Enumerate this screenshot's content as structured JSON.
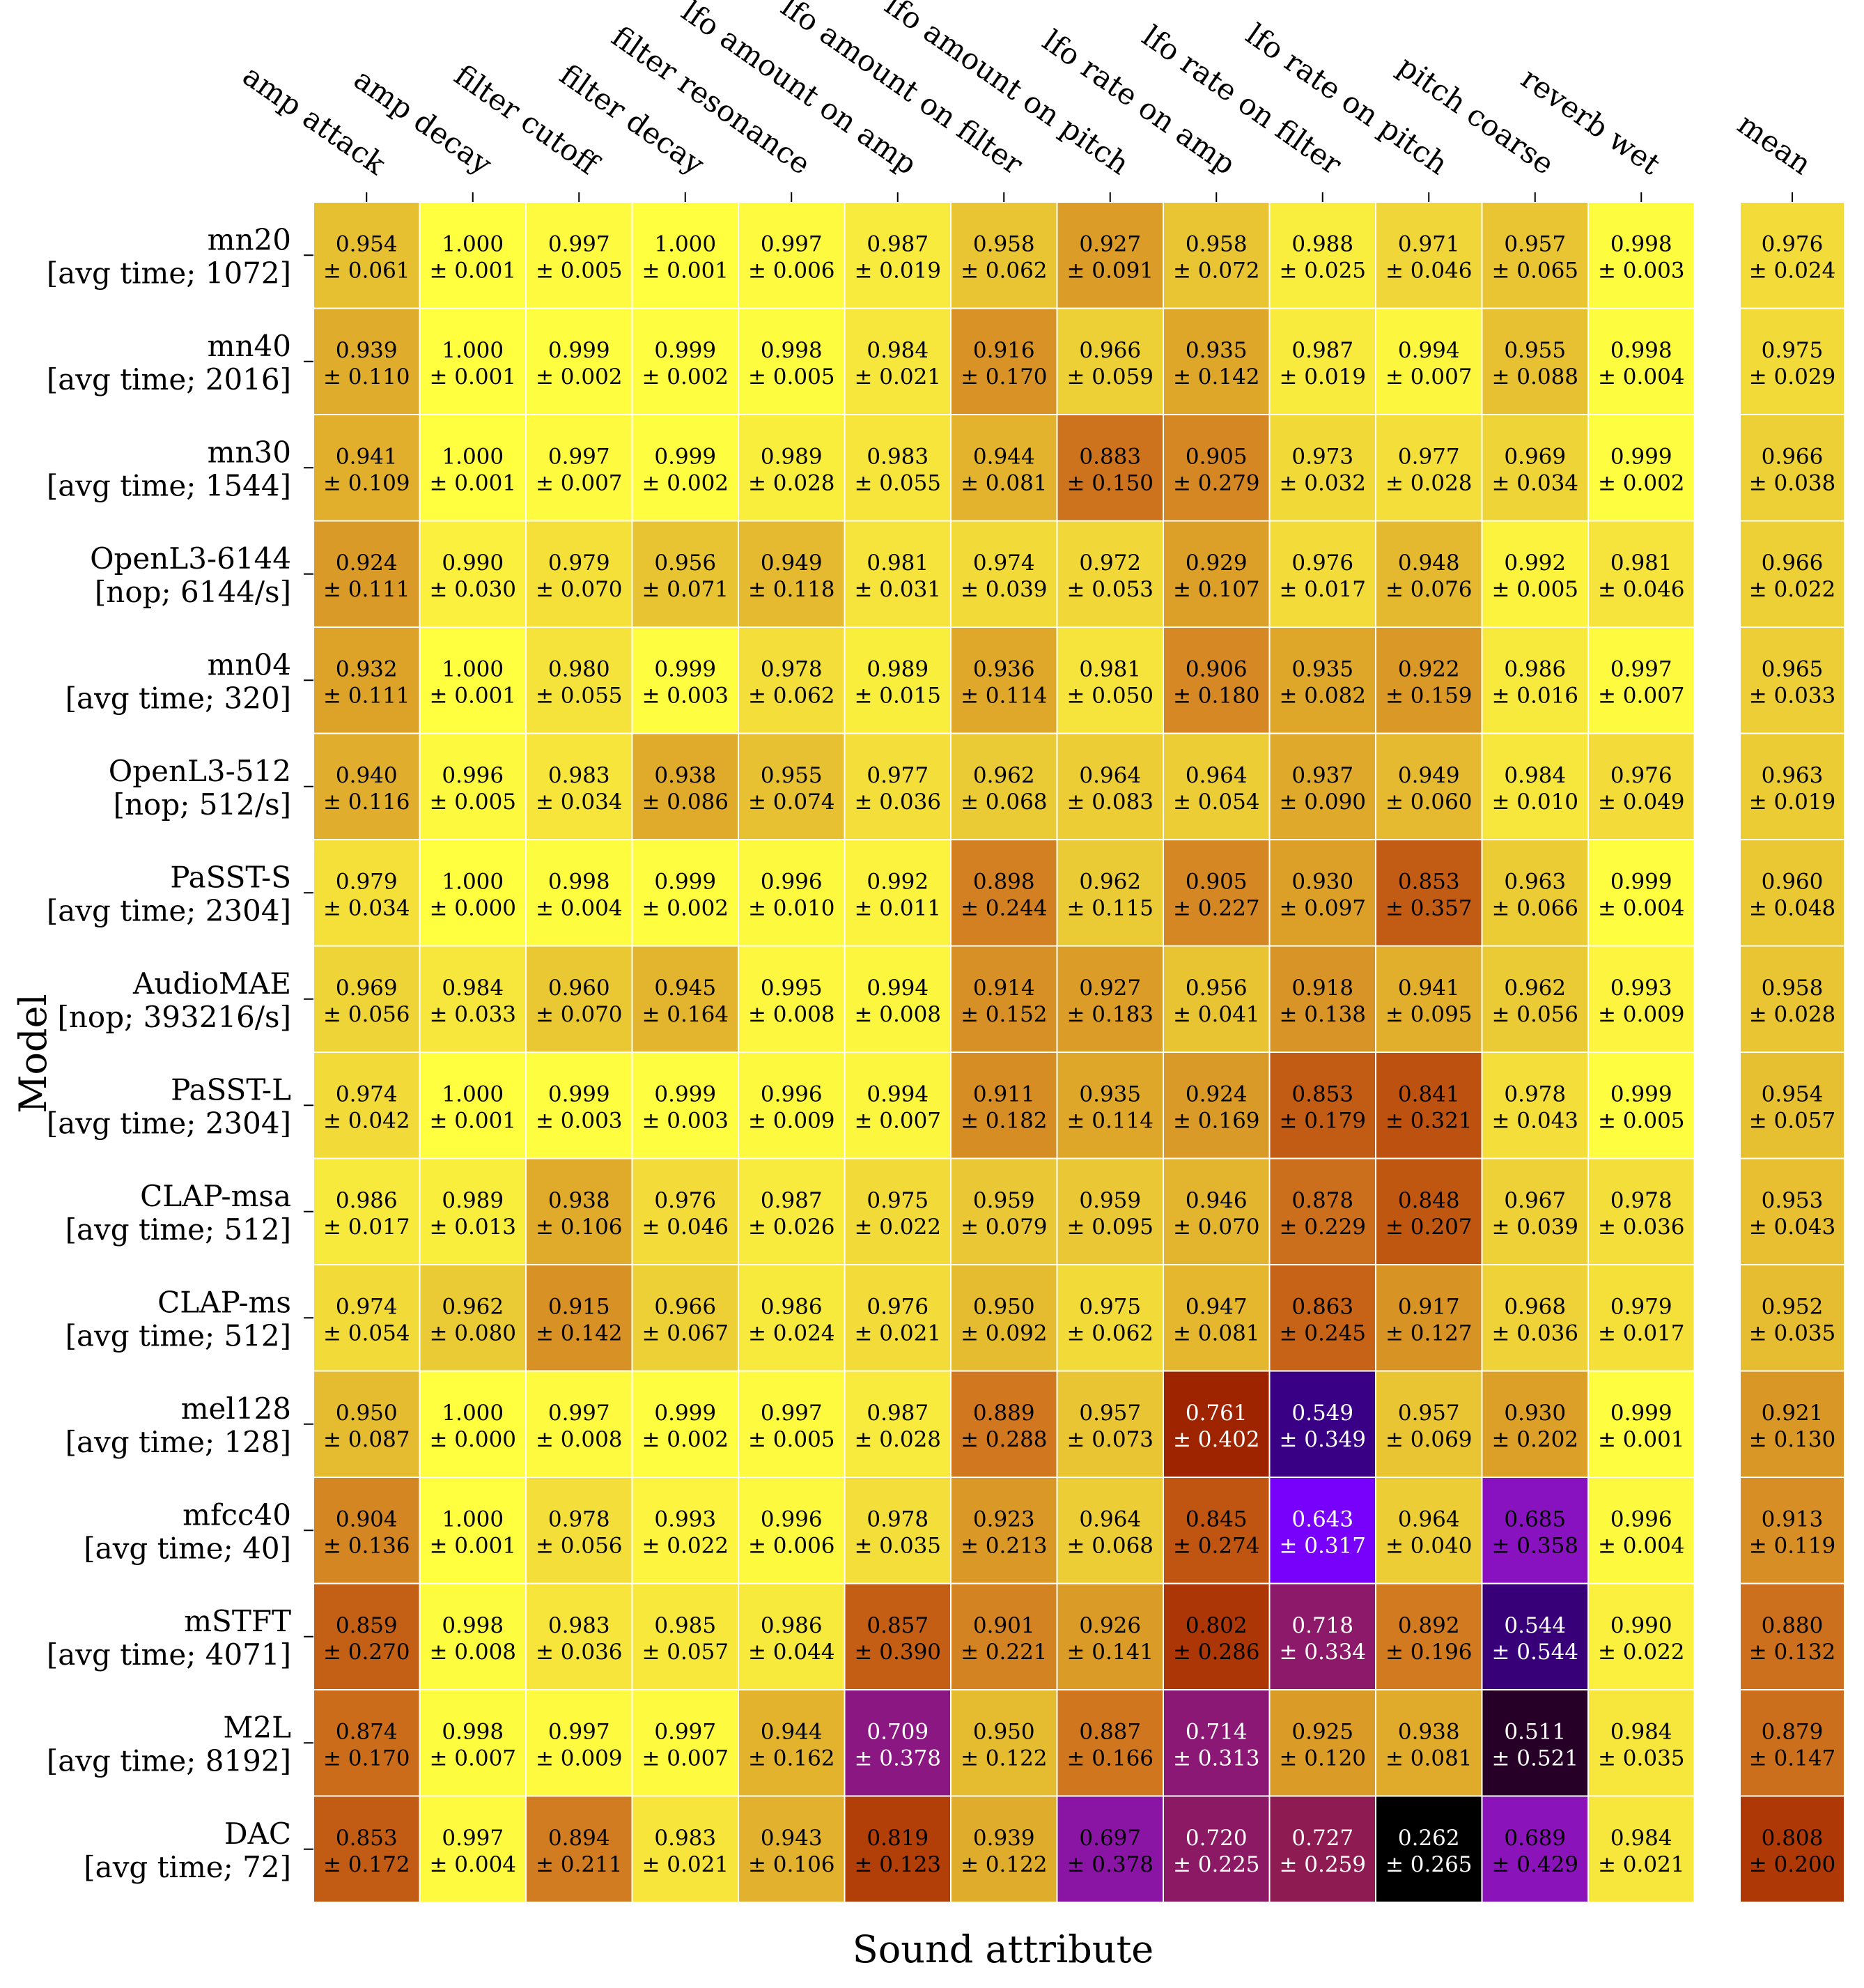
{
  "chart_data": {
    "type": "heatmap",
    "xlabel": "Sound attribute",
    "ylabel": "Model",
    "columns": [
      "amp attack",
      "amp decay",
      "filter cutoff",
      "filter decay",
      "filter resonance",
      "lfo amount on amp",
      "lfo amount on filter",
      "lfo amount on pitch",
      "lfo rate on amp",
      "lfo rate on filter",
      "lfo rate on pitch",
      "pitch coarse",
      "reverb wet"
    ],
    "mean_label": "mean",
    "rows": [
      {
        "model": "mn20",
        "detail": "[avg time; 1072]",
        "values": [
          "0.954",
          "1.000",
          "0.997",
          "1.000",
          "0.997",
          "0.987",
          "0.958",
          "0.927",
          "0.958",
          "0.988",
          "0.971",
          "0.957",
          "0.998"
        ],
        "stds": [
          "0.061",
          "0.001",
          "0.005",
          "0.001",
          "0.006",
          "0.019",
          "0.062",
          "0.091",
          "0.072",
          "0.025",
          "0.046",
          "0.065",
          "0.003"
        ],
        "mean": "0.976",
        "mean_std": "0.024"
      },
      {
        "model": "mn40",
        "detail": "[avg time; 2016]",
        "values": [
          "0.939",
          "1.000",
          "0.999",
          "0.999",
          "0.998",
          "0.984",
          "0.916",
          "0.966",
          "0.935",
          "0.987",
          "0.994",
          "0.955",
          "0.998"
        ],
        "stds": [
          "0.110",
          "0.001",
          "0.002",
          "0.002",
          "0.005",
          "0.021",
          "0.170",
          "0.059",
          "0.142",
          "0.019",
          "0.007",
          "0.088",
          "0.004"
        ],
        "mean": "0.975",
        "mean_std": "0.029"
      },
      {
        "model": "mn30",
        "detail": "[avg time; 1544]",
        "values": [
          "0.941",
          "1.000",
          "0.997",
          "0.999",
          "0.989",
          "0.983",
          "0.944",
          "0.883",
          "0.905",
          "0.973",
          "0.977",
          "0.969",
          "0.999"
        ],
        "stds": [
          "0.109",
          "0.001",
          "0.007",
          "0.002",
          "0.028",
          "0.055",
          "0.081",
          "0.150",
          "0.279",
          "0.032",
          "0.028",
          "0.034",
          "0.002"
        ],
        "mean": "0.966",
        "mean_std": "0.038"
      },
      {
        "model": "OpenL3-6144",
        "detail": "[nop; 6144/s]",
        "values": [
          "0.924",
          "0.990",
          "0.979",
          "0.956",
          "0.949",
          "0.981",
          "0.974",
          "0.972",
          "0.929",
          "0.976",
          "0.948",
          "0.992",
          "0.981"
        ],
        "stds": [
          "0.111",
          "0.030",
          "0.070",
          "0.071",
          "0.118",
          "0.031",
          "0.039",
          "0.053",
          "0.107",
          "0.017",
          "0.076",
          "0.005",
          "0.046"
        ],
        "mean": "0.966",
        "mean_std": "0.022"
      },
      {
        "model": "mn04",
        "detail": "[avg time; 320]",
        "values": [
          "0.932",
          "1.000",
          "0.980",
          "0.999",
          "0.978",
          "0.989",
          "0.936",
          "0.981",
          "0.906",
          "0.935",
          "0.922",
          "0.986",
          "0.997"
        ],
        "stds": [
          "0.111",
          "0.001",
          "0.055",
          "0.003",
          "0.062",
          "0.015",
          "0.114",
          "0.050",
          "0.180",
          "0.082",
          "0.159",
          "0.016",
          "0.007"
        ],
        "mean": "0.965",
        "mean_std": "0.033"
      },
      {
        "model": "OpenL3-512",
        "detail": "[nop; 512/s]",
        "values": [
          "0.940",
          "0.996",
          "0.983",
          "0.938",
          "0.955",
          "0.977",
          "0.962",
          "0.964",
          "0.964",
          "0.937",
          "0.949",
          "0.984",
          "0.976"
        ],
        "stds": [
          "0.116",
          "0.005",
          "0.034",
          "0.086",
          "0.074",
          "0.036",
          "0.068",
          "0.083",
          "0.054",
          "0.090",
          "0.060",
          "0.010",
          "0.049"
        ],
        "mean": "0.963",
        "mean_std": "0.019"
      },
      {
        "model": "PaSST-S",
        "detail": "[avg time; 2304]",
        "values": [
          "0.979",
          "1.000",
          "0.998",
          "0.999",
          "0.996",
          "0.992",
          "0.898",
          "0.962",
          "0.905",
          "0.930",
          "0.853",
          "0.963",
          "0.999"
        ],
        "stds": [
          "0.034",
          "0.000",
          "0.004",
          "0.002",
          "0.010",
          "0.011",
          "0.244",
          "0.115",
          "0.227",
          "0.097",
          "0.357",
          "0.066",
          "0.004"
        ],
        "mean": "0.960",
        "mean_std": "0.048"
      },
      {
        "model": "AudioMAE",
        "detail": "[nop; 393216/s]",
        "values": [
          "0.969",
          "0.984",
          "0.960",
          "0.945",
          "0.995",
          "0.994",
          "0.914",
          "0.927",
          "0.956",
          "0.918",
          "0.941",
          "0.962",
          "0.993"
        ],
        "stds": [
          "0.056",
          "0.033",
          "0.070",
          "0.164",
          "0.008",
          "0.008",
          "0.152",
          "0.183",
          "0.041",
          "0.138",
          "0.095",
          "0.056",
          "0.009"
        ],
        "mean": "0.958",
        "mean_std": "0.028"
      },
      {
        "model": "PaSST-L",
        "detail": "[avg time; 2304]",
        "values": [
          "0.974",
          "1.000",
          "0.999",
          "0.999",
          "0.996",
          "0.994",
          "0.911",
          "0.935",
          "0.924",
          "0.853",
          "0.841",
          "0.978",
          "0.999"
        ],
        "stds": [
          "0.042",
          "0.001",
          "0.003",
          "0.003",
          "0.009",
          "0.007",
          "0.182",
          "0.114",
          "0.169",
          "0.179",
          "0.321",
          "0.043",
          "0.005"
        ],
        "mean": "0.954",
        "mean_std": "0.057"
      },
      {
        "model": "CLAP-msa",
        "detail": "[avg time; 512]",
        "values": [
          "0.986",
          "0.989",
          "0.938",
          "0.976",
          "0.987",
          "0.975",
          "0.959",
          "0.959",
          "0.946",
          "0.878",
          "0.848",
          "0.967",
          "0.978"
        ],
        "stds": [
          "0.017",
          "0.013",
          "0.106",
          "0.046",
          "0.026",
          "0.022",
          "0.079",
          "0.095",
          "0.070",
          "0.229",
          "0.207",
          "0.039",
          "0.036"
        ],
        "mean": "0.953",
        "mean_std": "0.043"
      },
      {
        "model": "CLAP-ms",
        "detail": "[avg time; 512]",
        "values": [
          "0.974",
          "0.962",
          "0.915",
          "0.966",
          "0.986",
          "0.976",
          "0.950",
          "0.975",
          "0.947",
          "0.863",
          "0.917",
          "0.968",
          "0.979"
        ],
        "stds": [
          "0.054",
          "0.080",
          "0.142",
          "0.067",
          "0.024",
          "0.021",
          "0.092",
          "0.062",
          "0.081",
          "0.245",
          "0.127",
          "0.036",
          "0.017"
        ],
        "mean": "0.952",
        "mean_std": "0.035"
      },
      {
        "model": "mel128",
        "detail": "[avg time; 128]",
        "values": [
          "0.950",
          "1.000",
          "0.997",
          "0.999",
          "0.997",
          "0.987",
          "0.889",
          "0.957",
          "0.761",
          "0.549",
          "0.957",
          "0.930",
          "0.999"
        ],
        "stds": [
          "0.087",
          "0.000",
          "0.008",
          "0.002",
          "0.005",
          "0.028",
          "0.288",
          "0.073",
          "0.402",
          "0.349",
          "0.069",
          "0.202",
          "0.001"
        ],
        "mean": "0.921",
        "mean_std": "0.130"
      },
      {
        "model": "mfcc40",
        "detail": "[avg time; 40]",
        "values": [
          "0.904",
          "1.000",
          "0.978",
          "0.993",
          "0.996",
          "0.978",
          "0.923",
          "0.964",
          "0.845",
          "0.643",
          "0.964",
          "0.685",
          "0.996"
        ],
        "stds": [
          "0.136",
          "0.001",
          "0.056",
          "0.022",
          "0.006",
          "0.035",
          "0.213",
          "0.068",
          "0.274",
          "0.317",
          "0.040",
          "0.358",
          "0.004"
        ],
        "mean": "0.913",
        "mean_std": "0.119"
      },
      {
        "model": "mSTFT",
        "detail": "[avg time; 4071]",
        "values": [
          "0.859",
          "0.998",
          "0.983",
          "0.985",
          "0.986",
          "0.857",
          "0.901",
          "0.926",
          "0.802",
          "0.718",
          "0.892",
          "0.544",
          "0.990"
        ],
        "stds": [
          "0.270",
          "0.008",
          "0.036",
          "0.057",
          "0.044",
          "0.390",
          "0.221",
          "0.141",
          "0.286",
          "0.334",
          "0.196",
          "0.544",
          "0.022"
        ],
        "mean": "0.880",
        "mean_std": "0.132"
      },
      {
        "model": "M2L",
        "detail": "[avg time; 8192]",
        "values": [
          "0.874",
          "0.998",
          "0.997",
          "0.997",
          "0.944",
          "0.709",
          "0.950",
          "0.887",
          "0.714",
          "0.925",
          "0.938",
          "0.511",
          "0.984"
        ],
        "stds": [
          "0.170",
          "0.007",
          "0.009",
          "0.007",
          "0.162",
          "0.378",
          "0.122",
          "0.166",
          "0.313",
          "0.120",
          "0.081",
          "0.521",
          "0.035"
        ],
        "mean": "0.879",
        "mean_std": "0.147"
      },
      {
        "model": "DAC",
        "detail": "[avg time; 72]",
        "values": [
          "0.853",
          "0.997",
          "0.894",
          "0.983",
          "0.943",
          "0.819",
          "0.939",
          "0.697",
          "0.720",
          "0.727",
          "0.262",
          "0.689",
          "0.984"
        ],
        "stds": [
          "0.172",
          "0.004",
          "0.211",
          "0.021",
          "0.106",
          "0.123",
          "0.122",
          "0.378",
          "0.225",
          "0.259",
          "0.265",
          "0.429",
          "0.021"
        ],
        "mean": "0.808",
        "mean_std": "0.200"
      }
    ]
  }
}
